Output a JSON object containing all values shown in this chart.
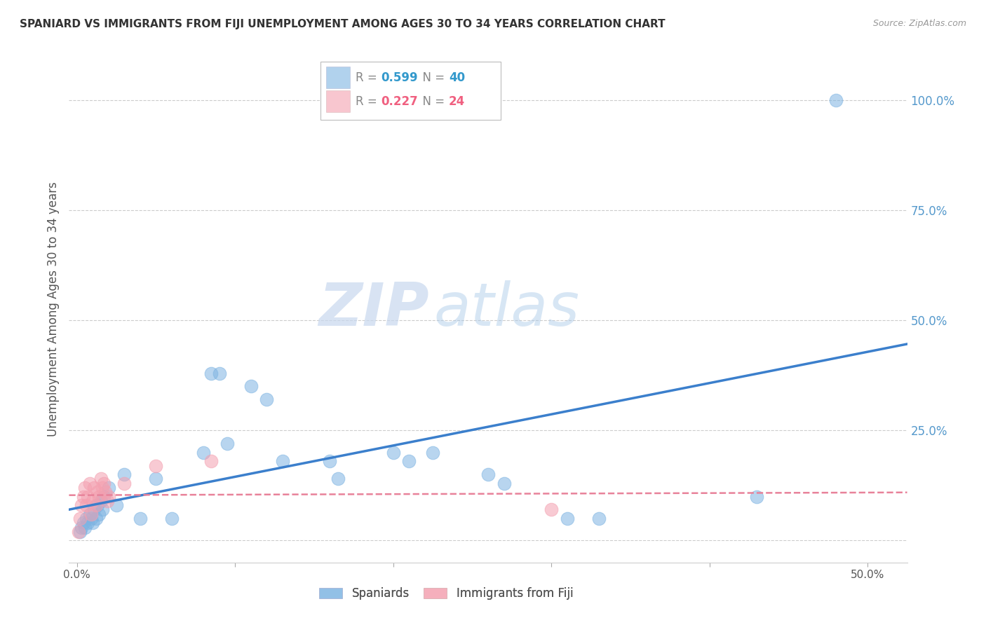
{
  "title": "SPANIARD VS IMMIGRANTS FROM FIJI UNEMPLOYMENT AMONG AGES 30 TO 34 YEARS CORRELATION CHART",
  "source": "Source: ZipAtlas.com",
  "ylabel_label": "Unemployment Among Ages 30 to 34 years",
  "x_tick_positions": [
    0.0,
    0.1,
    0.2,
    0.3,
    0.4,
    0.5
  ],
  "x_tick_labels": [
    "0.0%",
    "",
    "",
    "",
    "",
    "50.0%"
  ],
  "y_ticks": [
    0.0,
    0.25,
    0.5,
    0.75,
    1.0
  ],
  "y_tick_labels": [
    "",
    "25.0%",
    "50.0%",
    "75.0%",
    "100.0%"
  ],
  "xlim": [
    -0.005,
    0.525
  ],
  "ylim": [
    -0.05,
    1.1
  ],
  "spaniard_color": "#7EB4E2",
  "fiji_color": "#F4A0B0",
  "spaniard_R": 0.599,
  "spaniard_N": 40,
  "fiji_R": 0.227,
  "fiji_N": 24,
  "watermark": "ZIPatlas",
  "background_color": "#FFFFFF",
  "grid_color": "#CCCCCC",
  "spaniard_points_x": [
    0.002,
    0.003,
    0.004,
    0.005,
    0.006,
    0.007,
    0.008,
    0.009,
    0.01,
    0.011,
    0.012,
    0.013,
    0.014,
    0.015,
    0.016,
    0.017,
    0.02,
    0.025,
    0.03,
    0.04,
    0.05,
    0.06,
    0.08,
    0.085,
    0.09,
    0.095,
    0.11,
    0.12,
    0.13,
    0.16,
    0.165,
    0.2,
    0.21,
    0.225,
    0.26,
    0.27,
    0.31,
    0.33,
    0.43,
    0.48
  ],
  "spaniard_points_y": [
    0.02,
    0.03,
    0.04,
    0.03,
    0.05,
    0.04,
    0.06,
    0.05,
    0.04,
    0.07,
    0.05,
    0.08,
    0.06,
    0.09,
    0.07,
    0.1,
    0.12,
    0.08,
    0.15,
    0.05,
    0.14,
    0.05,
    0.2,
    0.38,
    0.38,
    0.22,
    0.35,
    0.32,
    0.18,
    0.18,
    0.14,
    0.2,
    0.18,
    0.2,
    0.15,
    0.13,
    0.05,
    0.05,
    0.1,
    1.0
  ],
  "fiji_points_x": [
    0.001,
    0.002,
    0.003,
    0.004,
    0.005,
    0.006,
    0.007,
    0.008,
    0.009,
    0.01,
    0.011,
    0.012,
    0.013,
    0.014,
    0.015,
    0.016,
    0.017,
    0.018,
    0.019,
    0.02,
    0.03,
    0.05,
    0.085,
    0.3
  ],
  "fiji_points_y": [
    0.02,
    0.05,
    0.08,
    0.1,
    0.12,
    0.08,
    0.1,
    0.13,
    0.06,
    0.09,
    0.12,
    0.08,
    0.11,
    0.1,
    0.14,
    0.12,
    0.13,
    0.11,
    0.09,
    0.1,
    0.13,
    0.17,
    0.18,
    0.07
  ]
}
